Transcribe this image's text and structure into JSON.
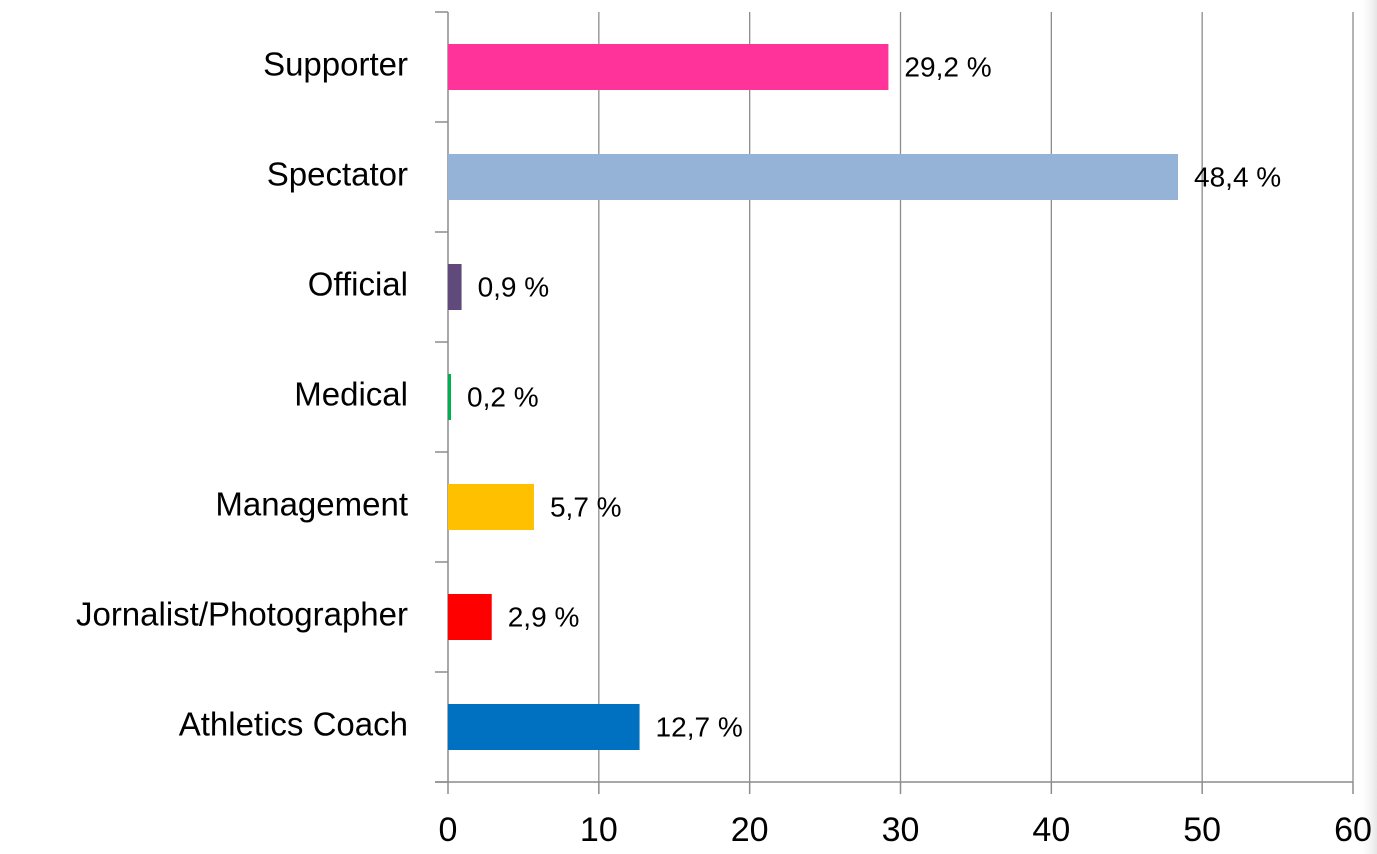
{
  "chart_data": {
    "type": "barh",
    "categories": [
      "Supporter",
      "Spectator",
      "Official",
      "Medical",
      "Management",
      "Jornalist/Photographer",
      "Athletics Coach"
    ],
    "values": [
      29.2,
      48.4,
      0.9,
      0.2,
      5.7,
      2.9,
      12.7
    ],
    "value_labels": [
      "29,2 %",
      "48,4 %",
      "0,9 %",
      "0,2 %",
      "5,7 %",
      "2,9 %",
      "12,7 %"
    ],
    "colors": [
      "#ff3399",
      "#95b3d7",
      "#604a7b",
      "#00b050",
      "#ffc000",
      "#ff0000",
      "#0070c0"
    ],
    "xlim": [
      0,
      60
    ],
    "xticks": [
      0,
      10,
      20,
      30,
      40,
      50,
      60
    ],
    "grid": true
  }
}
